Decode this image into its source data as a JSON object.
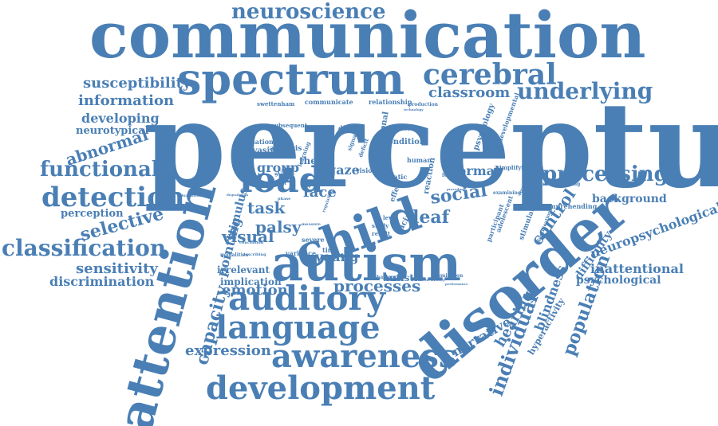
{
  "style": {
    "word_color": "#4a7fb5",
    "background": "#ffffff"
  },
  "words": [
    {
      "text": "perceptual",
      "size": 148,
      "angle": 0
    },
    {
      "text": "communication",
      "size": 80,
      "angle": 0
    },
    {
      "text": "spectrum",
      "size": 54,
      "angle": 0
    },
    {
      "text": "neuroscience",
      "size": 26,
      "angle": 0
    },
    {
      "text": "cerebral",
      "size": 36,
      "angle": 0
    },
    {
      "text": "classroom",
      "size": 18,
      "angle": 0
    },
    {
      "text": "underlying",
      "size": 28,
      "angle": 0
    },
    {
      "text": "susceptibility",
      "size": 18,
      "angle": 0
    },
    {
      "text": "information",
      "size": 18,
      "angle": 0
    },
    {
      "text": "developing",
      "size": 16,
      "angle": 0
    },
    {
      "text": "neurotypical",
      "size": 13,
      "angle": 0
    },
    {
      "text": "abnormal",
      "size": 20,
      "angle": -18
    },
    {
      "text": "functional",
      "size": 26,
      "angle": 0
    },
    {
      "text": "detection",
      "size": 34,
      "angle": 0
    },
    {
      "text": "perception",
      "size": 13,
      "angle": 0
    },
    {
      "text": "selective",
      "size": 22,
      "angle": -15
    },
    {
      "text": "classification",
      "size": 28,
      "angle": 0
    },
    {
      "text": "sensitivity",
      "size": 18,
      "angle": 0
    },
    {
      "text": "discrimination",
      "size": 16,
      "angle": 0
    },
    {
      "text": "attention",
      "size": 62,
      "angle": -75
    },
    {
      "text": "load",
      "size": 44,
      "angle": 0
    },
    {
      "text": "child",
      "size": 58,
      "angle": -20
    },
    {
      "text": "autism",
      "size": 62,
      "angle": 0
    },
    {
      "text": "disorder",
      "size": 70,
      "angle": -40
    },
    {
      "text": "processing",
      "size": 26,
      "angle": 0
    },
    {
      "text": "normal",
      "size": 16,
      "angle": 0
    },
    {
      "text": "social",
      "size": 22,
      "angle": -8
    },
    {
      "text": "control",
      "size": 20,
      "angle": -55
    },
    {
      "text": "deaf",
      "size": 22,
      "angle": 0
    },
    {
      "text": "background",
      "size": 14,
      "angle": 0
    },
    {
      "text": "neuropsychological",
      "size": 16,
      "angle": -20
    },
    {
      "text": "inattentional",
      "size": 16,
      "angle": 0
    },
    {
      "text": "psychological",
      "size": 14,
      "angle": 0
    },
    {
      "text": "difficulty",
      "size": 14,
      "angle": -55
    },
    {
      "text": "population",
      "size": 22,
      "angle": -70
    },
    {
      "text": "blindness",
      "size": 16,
      "angle": -70
    },
    {
      "text": "hyperactivity",
      "size": 11,
      "angle": -60
    },
    {
      "text": "individual",
      "size": 24,
      "angle": -70
    },
    {
      "text": "hearing",
      "size": 18,
      "angle": -60
    },
    {
      "text": "narrative",
      "size": 16,
      "angle": -30
    },
    {
      "text": "auditory",
      "size": 42,
      "angle": 0
    },
    {
      "text": "language",
      "size": 40,
      "angle": 0
    },
    {
      "text": "awareness",
      "size": 40,
      "angle": 0
    },
    {
      "text": "development",
      "size": 40,
      "angle": 0
    },
    {
      "text": "expression",
      "size": 18,
      "angle": 0
    },
    {
      "text": "capacity",
      "size": 22,
      "angle": -75
    },
    {
      "text": "pointing",
      "size": 16,
      "angle": -75
    },
    {
      "text": "stimulus",
      "size": 14,
      "angle": -75
    },
    {
      "text": "group",
      "size": 16,
      "angle": 0
    },
    {
      "text": "task",
      "size": 20,
      "angle": 0
    },
    {
      "text": "palsy",
      "size": 20,
      "angle": 0
    },
    {
      "text": "visual",
      "size": 20,
      "angle": 0
    },
    {
      "text": "irrelevant",
      "size": 12,
      "angle": 0
    },
    {
      "text": "implication",
      "size": 12,
      "angle": 0
    },
    {
      "text": "emotion",
      "size": 18,
      "angle": 0
    },
    {
      "text": "processes",
      "size": 20,
      "angle": 0
    },
    {
      "text": "autistic",
      "size": 12,
      "angle": 0
    },
    {
      "text": "young",
      "size": 16,
      "angle": 0
    },
    {
      "text": "face",
      "size": 18,
      "angle": 0
    },
    {
      "text": "gaze",
      "size": 16,
      "angle": 0
    },
    {
      "text": "theory",
      "size": 12,
      "angle": 0
    },
    {
      "text": "pervasive",
      "size": 10,
      "angle": 0
    },
    {
      "text": "evaluation",
      "size": 8,
      "angle": 0
    },
    {
      "text": "analysis",
      "size": 9,
      "angle": 0
    },
    {
      "text": "subsequent",
      "size": 7,
      "angle": 0
    },
    {
      "text": "communicate",
      "size": 8,
      "angle": 0
    },
    {
      "text": "relationship",
      "size": 8,
      "angle": 0
    },
    {
      "text": "swettenham",
      "size": 7,
      "angle": 0
    },
    {
      "text": "production",
      "size": 6,
      "angle": 0
    },
    {
      "text": "disease",
      "size": 8,
      "angle": 0
    },
    {
      "text": "unexpected",
      "size": 7,
      "angle": 0
    },
    {
      "text": "condition",
      "size": 10,
      "angle": 0
    },
    {
      "text": "emotional",
      "size": 10,
      "angle": -80
    },
    {
      "text": "psychology",
      "size": 10,
      "angle": -70
    },
    {
      "text": "developmental",
      "size": 8,
      "angle": -70
    },
    {
      "text": "human",
      "size": 8,
      "angle": 0
    },
    {
      "text": "simplifying",
      "size": 7,
      "angle": 0
    },
    {
      "text": "examining",
      "size": 6,
      "angle": 0
    },
    {
      "text": "comprehending",
      "size": 8,
      "angle": 0
    },
    {
      "text": "understanding",
      "size": 6,
      "angle": 0
    },
    {
      "text": "reaction",
      "size": 10,
      "angle": -80
    },
    {
      "text": "phatic",
      "size": 8,
      "angle": 0
    },
    {
      "text": "vision",
      "size": 8,
      "angle": 0
    },
    {
      "text": "effect",
      "size": 9,
      "angle": -70
    },
    {
      "text": "facial",
      "size": 10,
      "angle": -60
    },
    {
      "text": "level",
      "size": 7,
      "angle": 0
    },
    {
      "text": "study",
      "size": 7,
      "angle": 0
    },
    {
      "text": "result",
      "size": 7,
      "angle": 0
    },
    {
      "text": "participant",
      "size": 8,
      "angle": -70
    },
    {
      "text": "adolescent",
      "size": 8,
      "angle": -70
    },
    {
      "text": "stimulation",
      "size": 9,
      "angle": -70
    },
    {
      "text": "identification",
      "size": 6,
      "angle": -70
    },
    {
      "text": "severe",
      "size": 8,
      "angle": 0
    },
    {
      "text": "variance",
      "size": 8,
      "angle": 0
    },
    {
      "text": "time",
      "size": 8,
      "angle": 0
    },
    {
      "text": "modalities",
      "size": 6,
      "angle": 0
    },
    {
      "text": "conclusion",
      "size": 5,
      "angle": 0
    },
    {
      "text": "describing",
      "size": 5,
      "angle": 0
    },
    {
      "text": "disabilities",
      "size": 5,
      "angle": 0
    },
    {
      "text": "behaviour",
      "size": 6,
      "angle": 0
    },
    {
      "text": "distractibility",
      "size": 5,
      "angle": 0
    },
    {
      "text": "remington",
      "size": 6,
      "angle": 0
    },
    {
      "text": "performance",
      "size": 4,
      "angle": 0
    },
    {
      "text": "regulating",
      "size": 5,
      "angle": -70
    },
    {
      "text": "scale",
      "size": 8,
      "angle": -30
    },
    {
      "text": "female",
      "size": 6,
      "angle": 0
    },
    {
      "text": "signal",
      "size": 7,
      "angle": -70
    },
    {
      "text": "deficit",
      "size": 7,
      "angle": -70
    },
    {
      "text": "learning",
      "size": 7,
      "angle": -70
    },
    {
      "text": "model",
      "size": 6,
      "angle": 0
    },
    {
      "text": "phase",
      "size": 5,
      "angle": 0
    },
    {
      "text": "measure",
      "size": 5,
      "angle": 0
    },
    {
      "text": "technology",
      "size": 4,
      "angle": 0
    },
    {
      "text": "procedure",
      "size": 4,
      "angle": 0
    },
    {
      "text": "recognition",
      "size": 5,
      "angle": -70
    },
    {
      "text": "degradation",
      "size": 4,
      "angle": 0
    }
  ]
}
